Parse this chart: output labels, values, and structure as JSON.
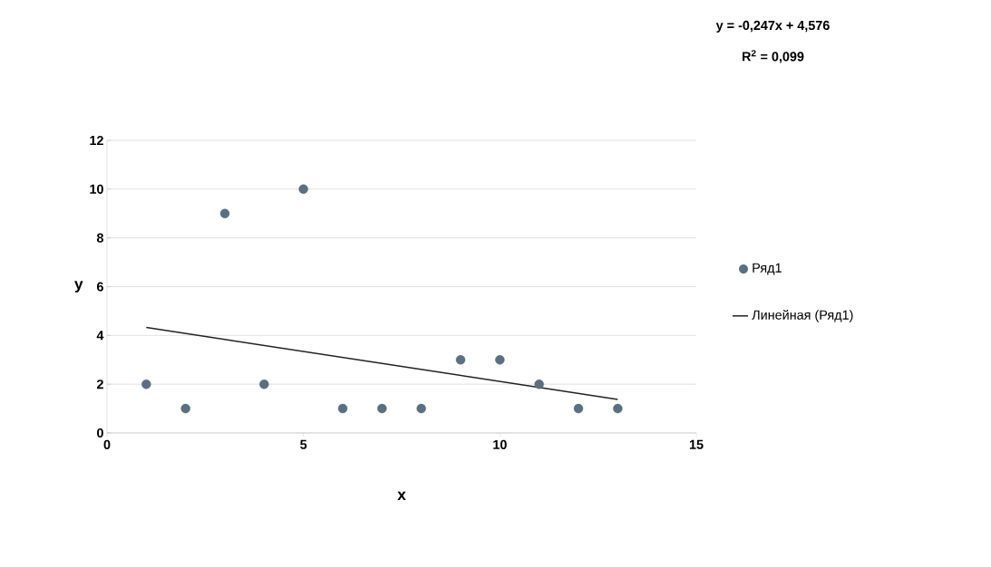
{
  "chart_data": {
    "type": "scatter",
    "xlabel": "x",
    "ylabel": "y",
    "annotations": [
      "y = -0,247x + 4,576",
      "R$^{2}$ = 0,099"
    ],
    "xlim": [
      0,
      15
    ],
    "xticks": [
      0,
      5,
      10,
      15
    ],
    "ylim": [
      0,
      12
    ],
    "yticks": [
      0,
      2,
      4,
      6,
      8,
      10,
      12
    ],
    "grid": "y",
    "legend": "right",
    "series": [
      {
        "name": "Ряд1",
        "marker": "circle",
        "color": "#5b6f82",
        "x": [
          1,
          2,
          3,
          4,
          5,
          6,
          7,
          8,
          9,
          10,
          11,
          12,
          13
        ],
        "values": [
          2,
          1,
          9,
          2,
          10,
          1,
          1,
          1,
          3,
          3,
          2,
          1,
          1
        ]
      },
      {
        "name": "Линейная (Ряд1)",
        "type": "line",
        "color": "#222222",
        "x": [
          1,
          13
        ],
        "values": [
          4.33,
          1.37
        ]
      }
    ]
  }
}
